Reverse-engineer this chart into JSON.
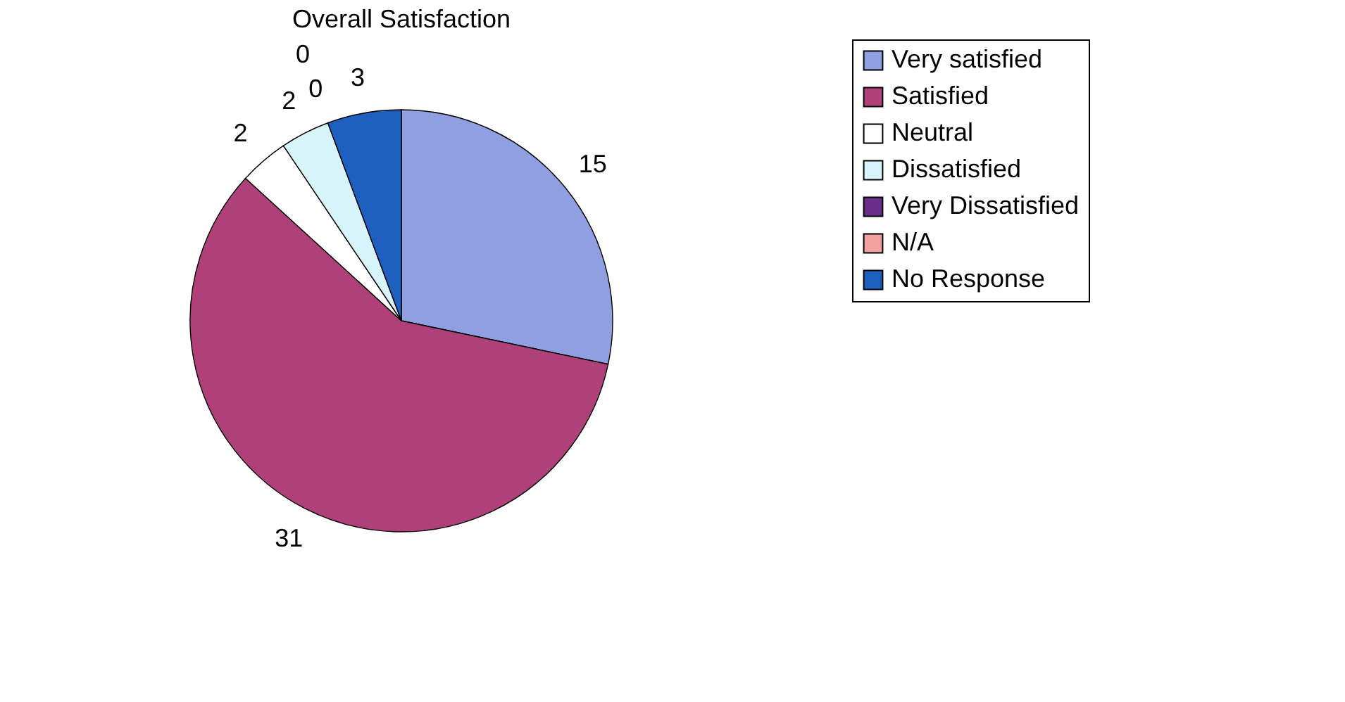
{
  "chart_data": {
    "type": "pie",
    "title": "Overall Satisfaction",
    "categories": [
      "Very satisfied",
      "Satisfied",
      "Neutral",
      "Dissatisfied",
      "Very Dissatisfied",
      "N/A",
      "No Response"
    ],
    "values": [
      15,
      31,
      2,
      2,
      0,
      0,
      3
    ],
    "colors": [
      "#8f9fe0",
      "#b0407a",
      "#ffffff",
      "#d8f4fb",
      "#6a2d8a",
      "#f4a0a0",
      "#1f5fbf"
    ],
    "value_labels": [
      "15",
      "31",
      "2",
      "2",
      "0",
      "0",
      "3"
    ],
    "legend": "right"
  }
}
